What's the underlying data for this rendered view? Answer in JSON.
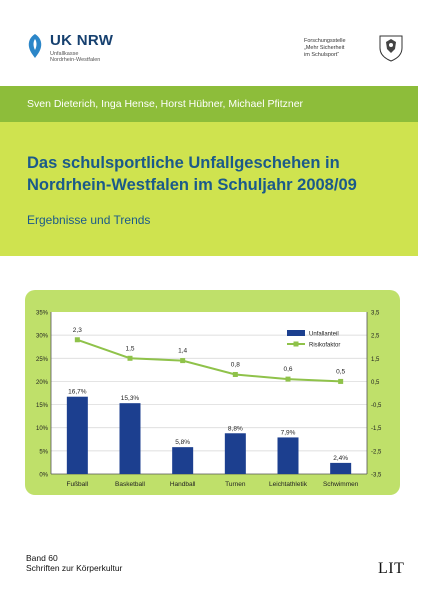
{
  "header": {
    "left_logo": {
      "title": "UK NRW",
      "sub_lines": [
        "Unfallkasse",
        "Nordrhein-Westfalen"
      ]
    },
    "right_logo": {
      "lines": [
        "Forschungsstelle",
        "„Mehr Sicherheit",
        "im Schulsport“"
      ]
    }
  },
  "authors": "Sven Dieterich, Inga Hense, Horst Hübner, Michael Pfitzner",
  "title_lines": [
    "Das schulsportliche Unfallgeschehen in",
    "Nordrhein-Westfalen im Schuljahr 2008/09"
  ],
  "subtitle": "Ergebnisse und Trends",
  "chart_data": {
    "type": "bar",
    "categories": [
      "Fußball",
      "Basketball",
      "Handball",
      "Turnen",
      "Leichtathletik",
      "Schwimmen"
    ],
    "series": [
      {
        "name": "Unfallanteil",
        "type": "bar",
        "axis": "left",
        "values": [
          16.7,
          15.3,
          5.8,
          8.8,
          7.9,
          2.4
        ],
        "labels": [
          "16,7%",
          "15,3%",
          "5,8%",
          "8,8%",
          "7,9%",
          "2,4%"
        ],
        "color": "#1c3f8f"
      },
      {
        "name": "Risikofaktor",
        "type": "line",
        "axis": "right",
        "values": [
          2.3,
          1.5,
          1.4,
          0.8,
          0.6,
          0.5
        ],
        "labels": [
          "2,3",
          "1,5",
          "1,4",
          "0,8",
          "0,6",
          "0,5"
        ],
        "color": "#8fc24a"
      }
    ],
    "y_left": {
      "range": [
        0,
        35
      ],
      "ticks": [
        "0%",
        "5%",
        "10%",
        "15%",
        "20%",
        "25%",
        "30%",
        "35%"
      ]
    },
    "y_right": {
      "range": [
        -3.5,
        3.5
      ],
      "ticks": [
        "-3,5",
        "-2,5",
        "-1,5",
        "-0,5",
        "0,5",
        "1,5",
        "2,5",
        "3,5"
      ],
      "tick_values": [
        -3.5,
        -2.5,
        -1.5,
        -0.5,
        0.5,
        1.5,
        2.5,
        3.5
      ]
    },
    "grid": true,
    "legend_position": "top-right"
  },
  "footer": {
    "band_label": "Band 60",
    "series_title": "Schriften zur Körperkultur",
    "publisher": "LIT"
  },
  "colors": {
    "band_dark": "#8dbd3a",
    "band_light": "#cfe34f",
    "title_blue": "#1b5a8a",
    "chart_bg": "#bfe06a"
  }
}
